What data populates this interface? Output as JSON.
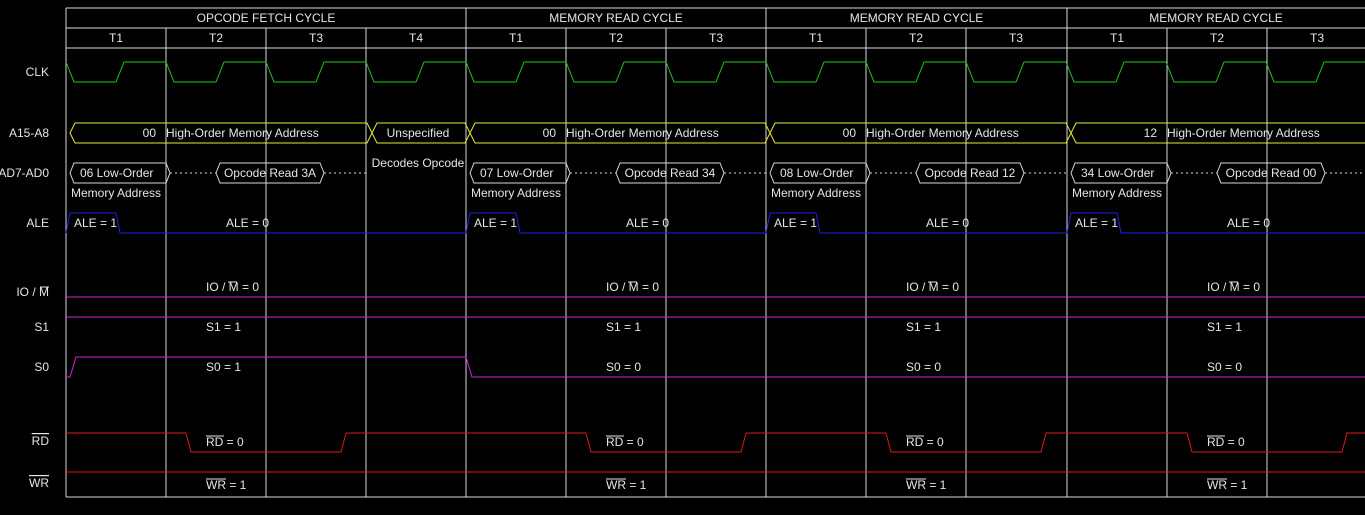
{
  "colors": {
    "background": "#000000",
    "grid": "#d8d8d8",
    "text": "#e6e6e6",
    "clk": "#22c422",
    "address": "#e8e83a",
    "ale": "#2020e0",
    "status": "#d028d0",
    "rd_wr": "#e01818"
  },
  "signal_labels": [
    {
      "key": "clk",
      "label": "CLK",
      "overline": false
    },
    {
      "key": "a15",
      "label": "A15-A8",
      "overline": false
    },
    {
      "key": "ad7",
      "label": "AD7-AD0",
      "overline": false
    },
    {
      "key": "ale",
      "label": "ALE",
      "overline": false
    },
    {
      "key": "iom",
      "label": "IO / M",
      "overline": false
    },
    {
      "key": "s1",
      "label": "S1",
      "overline": false
    },
    {
      "key": "s0",
      "label": "S0",
      "overline": false
    },
    {
      "key": "rd",
      "label": "RD",
      "overline": true
    },
    {
      "key": "wr",
      "label": "WR",
      "overline": true
    }
  ],
  "cycles": [
    {
      "title": "OPCODE FETCH CYCLE",
      "states": [
        "T1",
        "T2",
        "T3",
        "T4"
      ],
      "a15_prefix": "00",
      "a15_text": "High-Order Memory Address",
      "a15_t4": "Unspecified",
      "t4_note": "Decodes Opcode",
      "ad_low": "06 Low-Order",
      "ad_low_sub": "Memory Address",
      "ad_data": "Opcode Read 3A",
      "ale_high": "ALE = 1",
      "ale_low": "ALE = 0",
      "iom": "IO / M = 0",
      "s1": "S1 = 1",
      "s0": "S0 = 1",
      "rd": "RD = 0",
      "wr": "WR = 1"
    },
    {
      "title": "MEMORY READ CYCLE",
      "states": [
        "T1",
        "T2",
        "T3"
      ],
      "a15_prefix": "00",
      "a15_text": "High-Order Memory Address",
      "ad_low": "07 Low-Order",
      "ad_low_sub": "Memory Address",
      "ad_data": "Opcode Read 34",
      "ale_high": "ALE = 1",
      "ale_low": "ALE = 0",
      "iom": "IO / M = 0",
      "s1": "S1 = 1",
      "s0": "S0 = 0",
      "rd": "RD = 0",
      "wr": "WR = 1"
    },
    {
      "title": "MEMORY READ CYCLE",
      "states": [
        "T1",
        "T2",
        "T3"
      ],
      "a15_prefix": "00",
      "a15_text": "High-Order Memory Address",
      "ad_low": "08 Low-Order",
      "ad_low_sub": "Memory Address",
      "ad_data": "Opcode Read 12",
      "ale_high": "ALE = 1",
      "ale_low": "ALE = 0",
      "iom": "IO / M = 0",
      "s1": "S1 = 1",
      "s0": "S0 = 0",
      "rd": "RD = 0",
      "wr": "WR = 1"
    },
    {
      "title": "MEMORY READ CYCLE",
      "states": [
        "T1",
        "T2",
        "T3"
      ],
      "a15_prefix": "12",
      "a15_text": "High-Order Memory Address",
      "ad_low": "34 Low-Order",
      "ad_low_sub": "Memory Address",
      "ad_data": "Opcode Read 00",
      "ale_high": "ALE = 1",
      "ale_low": "ALE = 0",
      "iom": "IO / M = 0",
      "s1": "S1 = 1",
      "s0": "S0 = 0",
      "rd": "RD = 0",
      "wr": "WR = 1"
    }
  ]
}
